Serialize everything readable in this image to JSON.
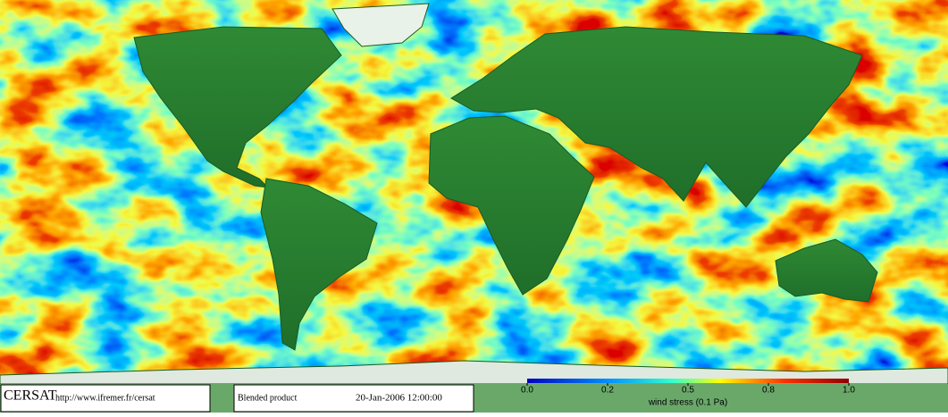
{
  "logo": "CERSAT",
  "url": "http://www.ifremer.fr/cersat",
  "product": "Blended product",
  "date": "20-Jan-2006 12:00:00",
  "colorbar": {
    "label": "wind stress (0.1 Pa)",
    "ticks": [
      {
        "value": 0,
        "label": "0.0"
      },
      0.2,
      0.5,
      0.8,
      {
        "value": 1,
        "label": "1.0"
      }
    ]
  }
}
